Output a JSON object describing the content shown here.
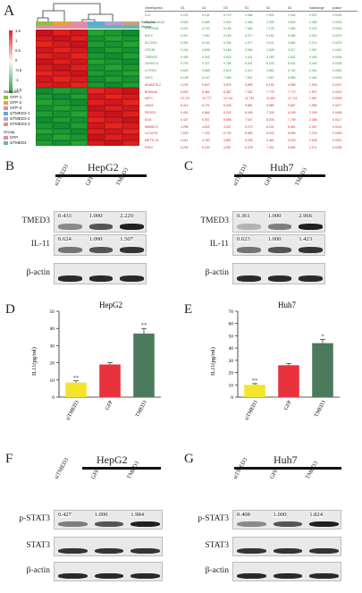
{
  "panels": {
    "A": "A",
    "B": "B",
    "C": "C",
    "D": "D",
    "E": "E",
    "F": "F",
    "G": "G"
  },
  "heatmap": {
    "header_samples": "Samples",
    "header_group": "Group",
    "color_scale_ticks": [
      "1.5",
      "1",
      "0.5",
      "0",
      "-0.5",
      "-1",
      "-1.5"
    ],
    "legend_samples_title": "Samples",
    "legend_samples": [
      "GFP-1",
      "GFP-2",
      "GFP-3",
      "siTMED3-1",
      "siTMED3-2",
      "siTMED3-3"
    ],
    "legend_samples_colors": [
      "#8fbf3f",
      "#e6a33c",
      "#e68aa8",
      "#5fa9d6",
      "#b79fd1",
      "#c9a07a"
    ],
    "legend_group_title": "Group",
    "legend_group": [
      "GFP",
      "siTMED3"
    ],
    "legend_group_colors": [
      "#e68aa8",
      "#5fb8b0"
    ],
    "table_headers": [
      "GeneSymbol",
      "G1",
      "G2",
      "G3",
      "S1",
      "S2",
      "S3",
      "foldchange",
      "pvalue"
    ],
    "table_rows": [
      [
        "IL11",
        "5.241",
        "5.134",
        "5.719",
        "4.466",
        "2.902",
        "2.404",
        "0.537",
        "0.0189"
      ],
      [
        "ST6GALNAC5",
        "5.529",
        "5.688",
        "5.504",
        "2.456",
        "4.309",
        "2.825",
        "0.382",
        "0.0004"
      ],
      [
        "PPP2R2B",
        "6.474",
        "6.709",
        "6.136",
        "7.360",
        "7.133",
        "7.050",
        "0.224",
        "0.0004"
      ],
      [
        "ENY2",
        "6.967",
        "7.060",
        "6.195",
        "6.277",
        "5.182",
        "6.085",
        "0.320",
        "0.0270"
      ],
      [
        "SLC2A11",
        "5.351",
        "5.233",
        "5.296",
        "4.077",
        "4.101",
        "3.660",
        "0.274",
        "0.0275"
      ],
      [
        "CRC38",
        "5.244",
        "5.598",
        "5.166",
        "3.365",
        "2.828",
        "3.517",
        "0.367",
        "0.0421"
      ],
      [
        "TMEM33",
        "5.465",
        "5.346",
        "5.603",
        "3.421",
        "4.189",
        "4.502",
        "0.409",
        "0.0046"
      ],
      [
        "ZDHHC11",
        "9.763",
        "9.327",
        "9.758",
        "8.301",
        "8.233",
        "8.001",
        "0.440",
        "0.0208"
      ],
      [
        "CYP4V2",
        "6.649",
        "5.668",
        "6.615",
        "3.312",
        "5.682",
        "5.752",
        "0.461",
        "0.0451"
      ],
      [
        "ZNF3",
        "6.158",
        "6.167",
        "7.083",
        "7.601",
        "7.067",
        "6.583",
        "0.464",
        "0.0434"
      ],
      [
        "ADAMTSL2",
        "4.232",
        "5.847",
        "3.878",
        "5.899",
        "6.190",
        "4.956",
        "1.916",
        "0.0307"
      ],
      [
        "BOMA4A",
        "6.653",
        "6.484",
        "6.387",
        "7.322",
        "7.778",
        "7.772",
        "1.870",
        "0.0013"
      ],
      [
        "MZT1",
        "10.711",
        "10.777",
        "10.744",
        "11.733",
        "11.667",
        "11.713",
        "1.987",
        "0.0005"
      ],
      [
        "LMO4",
        "8.414",
        "8.791",
        "8.028",
        "9.881",
        "9.589",
        "9.867",
        "1.996",
        "0.0077"
      ],
      [
        "PIEZO3",
        "5.491",
        "4.864",
        "5.224",
        "6.045",
        "7.026",
        "6.198",
        "2.249",
        "0.0445"
      ],
      [
        "DCN",
        "6.427",
        "6.937",
        "6.598",
        "7.547",
        "8.033",
        "7.739",
        "2.355",
        "0.0117"
      ],
      [
        "MAMDC2",
        "4.285",
        "4.622",
        "4.047",
        "5.272",
        "6.101",
        "5.451",
        "2.257",
        "0.0142"
      ],
      [
        "C17orf78",
        "7.823",
        "7.423",
        "6.729",
        "8.659",
        "8.903",
        "8.589",
        "2.375",
        "0.0309"
      ],
      [
        "METTL7A",
        "4.011",
        "4.783",
        "3.887",
        "5.206",
        "4.464",
        "5.929",
        "2.535",
        "0.0321"
      ],
      [
        "PSD4",
        "5.292",
        "5.249",
        "4.987",
        "6.378",
        "7.431",
        "6.682",
        "2.171",
        "0.0438"
      ]
    ]
  },
  "panel_B": {
    "title": "HepG2",
    "lanes": [
      "siTMED3",
      "GFP",
      "TMED3"
    ],
    "rows": [
      {
        "label": "TMED3",
        "values": [
          "0.433",
          "1.000",
          "2.220"
        ]
      },
      {
        "label": "IL-11",
        "values": [
          "0.624",
          "1.000",
          "1.507"
        ]
      },
      {
        "label": "β-actin",
        "values": []
      }
    ]
  },
  "panel_C": {
    "title": "Huh7",
    "lanes": [
      "siTMED3",
      "GFP",
      "TMED3"
    ],
    "rows": [
      {
        "label": "TMED3",
        "values": [
          "0.361",
          "1.000",
          "2.966"
        ]
      },
      {
        "label": "IL-11",
        "values": [
          "0.623",
          "1.000",
          "1.423"
        ]
      },
      {
        "label": "β-actin",
        "values": []
      }
    ]
  },
  "panel_F": {
    "title": "HepG2",
    "lanes": [
      "siTMED3",
      "GFP",
      "TMED3"
    ],
    "rows": [
      {
        "label": "p-STAT3",
        "values": [
          "0.427",
          "1.000",
          "1.984"
        ]
      },
      {
        "label": "STAT3",
        "values": []
      },
      {
        "label": "β-actin",
        "values": []
      }
    ]
  },
  "panel_G": {
    "title": "Huh7",
    "lanes": [
      "siTMED3",
      "GFP",
      "TMED3"
    ],
    "rows": [
      {
        "label": "p-STAT3",
        "values": [
          "0.408",
          "1.000",
          "1.824"
        ]
      },
      {
        "label": "STAT3",
        "values": []
      },
      {
        "label": "β-actin",
        "values": []
      }
    ]
  },
  "chart_data": [
    {
      "type": "bar",
      "title": "HepG2",
      "categories": [
        "siTMED3",
        "GFP",
        "TMED3"
      ],
      "values": [
        8.5,
        19,
        37
      ],
      "errors": [
        1,
        1,
        3
      ],
      "significance": [
        "**",
        "",
        "**"
      ],
      "colors": [
        "#f2e52a",
        "#e8323c",
        "#4c7a5c"
      ],
      "ylabel": "IL11(pg/ml)",
      "ylim": [
        0,
        50
      ],
      "yticks": [
        0,
        10,
        20,
        30,
        40,
        50
      ]
    },
    {
      "type": "bar",
      "title": "Huh7",
      "categories": [
        "siTMED3",
        "GFP",
        "TMED3"
      ],
      "values": [
        10,
        26,
        44
      ],
      "errors": [
        1,
        1.5,
        3
      ],
      "significance": [
        "**",
        "",
        "*"
      ],
      "colors": [
        "#f2e52a",
        "#e8323c",
        "#4c7a5c"
      ],
      "ylabel": "IL11(pg/ml)",
      "ylim": [
        0,
        70
      ],
      "yticks": [
        0,
        10,
        20,
        30,
        40,
        50,
        60,
        70
      ]
    }
  ]
}
